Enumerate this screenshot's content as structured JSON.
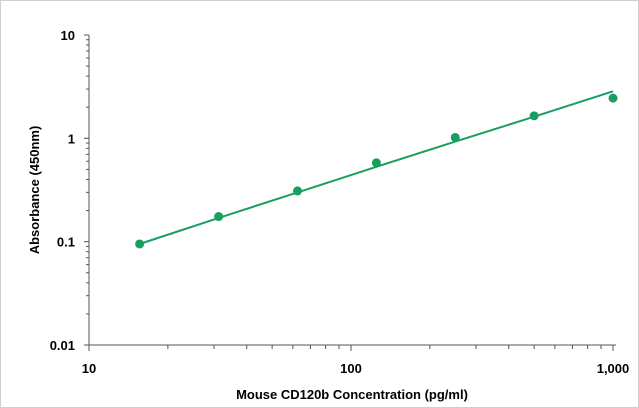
{
  "chart_data": {
    "type": "scatter",
    "title": "",
    "xlabel": "Mouse CD120b Concentration (pg/ml)",
    "ylabel": "Absorbance (450nm)",
    "x_scale": "log",
    "y_scale": "log",
    "xlim": [
      10,
      1000
    ],
    "ylim": [
      0.01,
      10
    ],
    "x_ticks": [
      {
        "value": 10,
        "label": "10"
      },
      {
        "value": 100,
        "label": "100"
      },
      {
        "value": 1000,
        "label": "1,000"
      }
    ],
    "y_ticks": [
      {
        "value": 10,
        "label": "10"
      },
      {
        "value": 1,
        "label": "1"
      },
      {
        "value": 0.1,
        "label": "0.1"
      },
      {
        "value": 0.01,
        "label": "0.01"
      }
    ],
    "grid": false,
    "legend": "none",
    "colors": {
      "series": "#1a9e5f",
      "axis": "#555555"
    },
    "series": [
      {
        "x": [
          15.6,
          31.25,
          62.5,
          125,
          250,
          500,
          1000
        ],
        "y": [
          0.095,
          0.175,
          0.31,
          0.58,
          1.02,
          1.65,
          2.45
        ]
      }
    ],
    "fit_line": {
      "x": [
        15.6,
        31.25,
        62.5,
        125,
        250,
        500,
        1000
      ],
      "y": [
        0.095,
        0.17,
        0.3,
        0.53,
        0.93,
        1.62,
        2.85
      ]
    }
  }
}
